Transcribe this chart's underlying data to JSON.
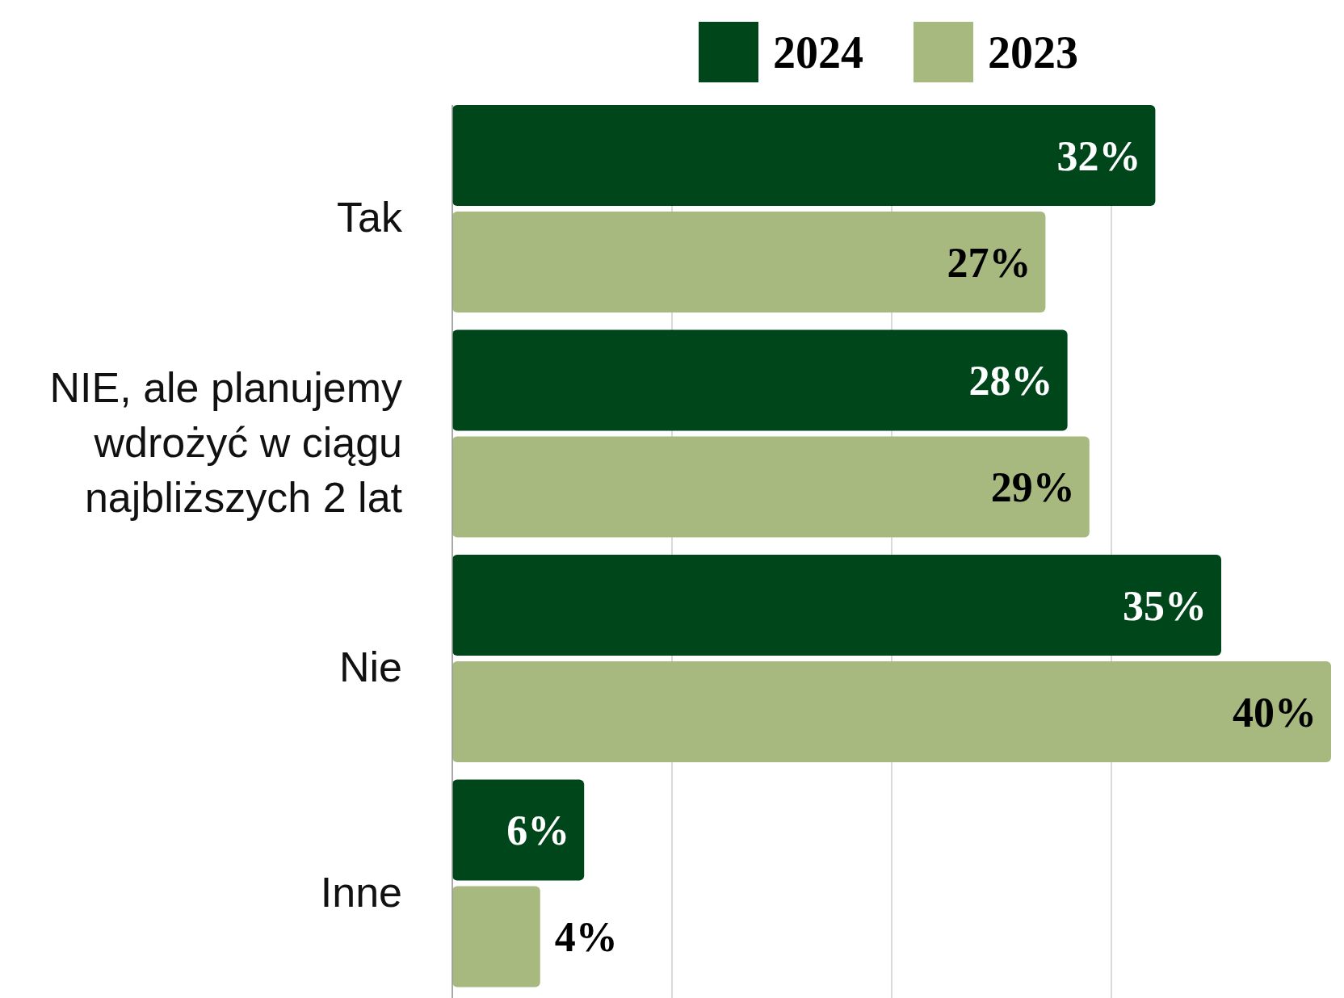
{
  "chart_data": {
    "type": "bar",
    "orientation": "horizontal",
    "categories": [
      "Tak",
      "NIE, ale planujemy wdrożyć w ciągu najbliższych 2 lat",
      "Nie",
      "Inne"
    ],
    "series": [
      {
        "name": "2024",
        "color": "#00461b",
        "values": [
          32,
          28,
          35,
          6
        ],
        "value_labels": [
          "32%",
          "28%",
          "35%",
          "6%"
        ]
      },
      {
        "name": "2023",
        "color": "#a8b97f",
        "values": [
          27,
          29,
          40,
          4
        ],
        "value_labels": [
          "27%",
          "29%",
          "40%",
          "4%"
        ]
      }
    ],
    "xlim": [
      0,
      40
    ],
    "xticks": [
      {
        "value": 0,
        "label": null
      },
      {
        "value": 10,
        "label": null
      },
      {
        "value": 20,
        "label": null
      },
      {
        "value": 30,
        "label": null
      }
    ],
    "grid": "x",
    "legend": "top",
    "tick_labels": "y"
  }
}
